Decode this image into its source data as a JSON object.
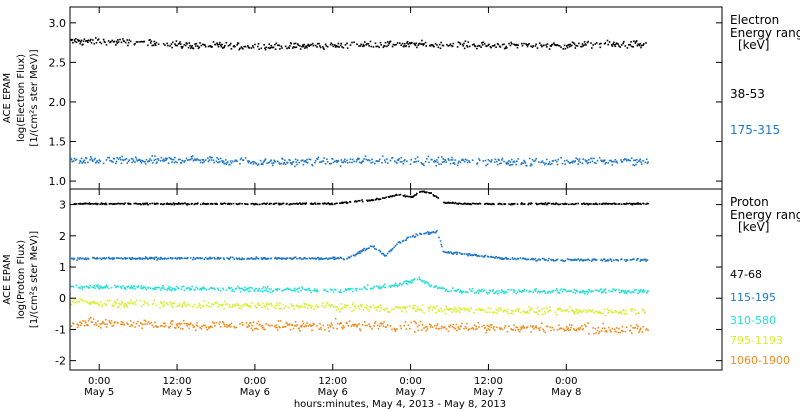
{
  "figure": {
    "x_axis_title": "hours:minutes,  May  4, 2013 - May  8, 2013",
    "time_ticks": [
      {
        "hhmm": "0:00",
        "day": "May 5"
      },
      {
        "hhmm": "12:00",
        "day": "May 5"
      },
      {
        "hhmm": "0:00",
        "day": "May 6"
      },
      {
        "hhmm": "12:00",
        "day": "May 6"
      },
      {
        "hhmm": "0:00",
        "day": "May 7"
      },
      {
        "hhmm": "12:00",
        "day": "May 7"
      },
      {
        "hhmm": "0:00",
        "day": "May 8"
      }
    ]
  },
  "chart_data": [
    {
      "type": "scatter",
      "panel": "electron",
      "ylabel_lines": [
        "ACE EPAM",
        "log(Electron Flux)",
        "[1/(cm²s ster MeV)]"
      ],
      "ylim": [
        0.9,
        3.2
      ],
      "y_ticks": [
        1.0,
        1.5,
        2.0,
        2.5,
        3.0
      ],
      "legend_title_lines": [
        "Electron",
        "Energy ranges",
        "[keV]"
      ],
      "x_unit": "hours since May 4 2013 00:00 UT",
      "xlim": [
        19.5,
        120
      ],
      "data_range_x": [
        19.5,
        108.5
      ],
      "series": [
        {
          "name": "38-53",
          "color": "#000000",
          "x": [
            19.5,
            30,
            40,
            50,
            60,
            70,
            80,
            90,
            100,
            108.5
          ],
          "y": [
            2.78,
            2.76,
            2.72,
            2.71,
            2.72,
            2.74,
            2.73,
            2.72,
            2.73,
            2.74
          ]
        },
        {
          "name": "175-315",
          "color": "#1f78c8",
          "x": [
            19.5,
            30,
            40,
            50,
            60,
            70,
            80,
            90,
            100,
            108.5
          ],
          "y": [
            1.26,
            1.27,
            1.28,
            1.25,
            1.26,
            1.27,
            1.26,
            1.25,
            1.26,
            1.26
          ]
        }
      ]
    },
    {
      "type": "scatter",
      "panel": "proton",
      "ylabel_lines": [
        "ACE EPAM",
        "log(Proton Flux)",
        "[1/(cm²s ster MeV)]"
      ],
      "ylim": [
        -2.3,
        3.5
      ],
      "y_ticks": [
        -2,
        -1,
        0,
        1,
        2,
        3
      ],
      "legend_title_lines": [
        "Proton",
        "Energy ranges",
        "[keV]"
      ],
      "x_unit": "hours since May 4 2013 00:00 UT",
      "xlim": [
        19.5,
        120
      ],
      "data_range_x": [
        19.5,
        108.5
      ],
      "series": [
        {
          "name": "47-68",
          "color": "#000000",
          "x": [
            19.5,
            40,
            60,
            67,
            70,
            72,
            73.5,
            75,
            77,
            80,
            90,
            108.5
          ],
          "y": [
            3.05,
            3.05,
            3.05,
            3.2,
            3.35,
            3.25,
            3.45,
            3.4,
            3.1,
            3.05,
            3.05,
            3.05
          ]
        },
        {
          "name": "115-195",
          "color": "#1f78c8",
          "x": [
            19.5,
            40,
            62,
            66,
            68,
            70,
            72,
            74,
            76,
            77,
            80,
            86,
            95,
            108.5
          ],
          "y": [
            1.3,
            1.3,
            1.3,
            1.7,
            1.4,
            1.8,
            2.0,
            2.1,
            2.15,
            1.5,
            1.45,
            1.3,
            1.25,
            1.25
          ]
        },
        {
          "name": "310-580",
          "color": "#22e0d6",
          "x": [
            19.5,
            35,
            50,
            62,
            70,
            73,
            75,
            77,
            80,
            90,
            108.5
          ],
          "y": [
            0.4,
            0.35,
            0.3,
            0.28,
            0.45,
            0.65,
            0.45,
            0.3,
            0.25,
            0.25,
            0.25
          ]
        },
        {
          "name": "795-1193",
          "color": "#d4f02a",
          "x": [
            19.5,
            40,
            60,
            80,
            100,
            108.5
          ],
          "y": [
            -0.1,
            -0.2,
            -0.25,
            -0.35,
            -0.4,
            -0.4
          ]
        },
        {
          "name": "1060-1900",
          "color": "#f28c1e",
          "x": [
            19.5,
            40,
            60,
            80,
            100,
            108.5
          ],
          "y": [
            -0.75,
            -0.85,
            -0.85,
            -0.9,
            -0.95,
            -1.0
          ]
        }
      ]
    }
  ]
}
